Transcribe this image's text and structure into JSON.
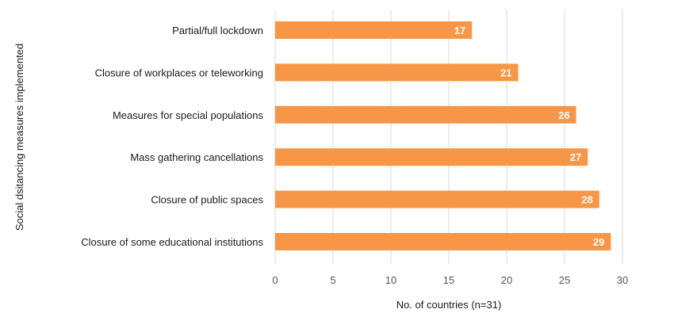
{
  "chart_data": {
    "type": "bar",
    "orientation": "horizontal",
    "categories": [
      "Partial/full lockdown",
      "Closure of workplaces or teleworking",
      "Measures for special populations",
      "Mass gathering cancellations",
      "Closure of public spaces",
      "Closure of some educational institutions"
    ],
    "values": [
      17,
      21,
      26,
      27,
      28,
      29
    ],
    "data_labels": [
      "17",
      "21",
      "26",
      "27",
      "28",
      "29"
    ],
    "xlabel": "No. of countries (n=31)",
    "ylabel": "Social dsitancing measures implemented",
    "xlim": [
      0,
      30
    ],
    "xticks": [
      0,
      5,
      10,
      15,
      20,
      25,
      30
    ],
    "xtick_labels": [
      "0",
      "5",
      "10",
      "15",
      "20",
      "25",
      "30"
    ],
    "grid": true,
    "bar_color": "#F79646"
  }
}
